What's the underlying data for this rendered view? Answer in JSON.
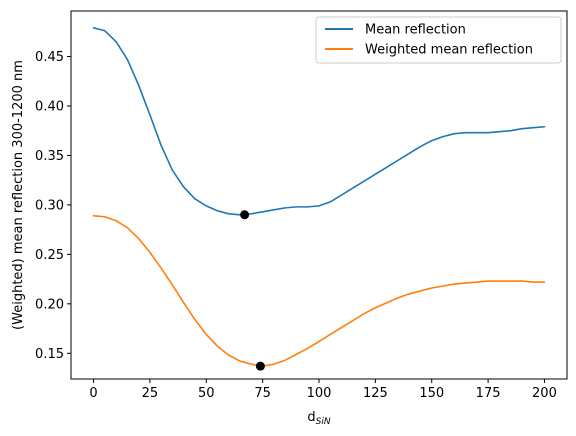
{
  "chart_data": {
    "type": "line",
    "title": "",
    "xlabel": "d",
    "xlabel_subscript": "SiN",
    "ylabel": "(Weighted) mean reflection 300-1200 nm",
    "xlim": [
      -10,
      210
    ],
    "ylim": [
      0.124,
      0.496
    ],
    "xticks": [
      0,
      25,
      50,
      75,
      100,
      125,
      150,
      175,
      200
    ],
    "yticks": [
      0.15,
      0.2,
      0.25,
      0.3,
      0.35,
      0.4,
      0.45
    ],
    "ytick_labels": [
      "0.15",
      "0.20",
      "0.25",
      "0.30",
      "0.35",
      "0.40",
      "0.45"
    ],
    "legend_position": "top-right",
    "series": [
      {
        "name": "Mean reflection",
        "color": "#1f77b4",
        "x": [
          0,
          5,
          10,
          15,
          20,
          25,
          30,
          35,
          40,
          45,
          50,
          55,
          60,
          65,
          67,
          70,
          75,
          80,
          85,
          90,
          95,
          100,
          105,
          110,
          115,
          120,
          125,
          130,
          135,
          140,
          145,
          150,
          155,
          160,
          165,
          170,
          175,
          180,
          185,
          190,
          195,
          200
        ],
        "y": [
          0.479,
          0.476,
          0.465,
          0.447,
          0.421,
          0.391,
          0.36,
          0.335,
          0.318,
          0.306,
          0.299,
          0.294,
          0.291,
          0.29,
          0.29,
          0.291,
          0.293,
          0.295,
          0.297,
          0.298,
          0.298,
          0.299,
          0.303,
          0.31,
          0.317,
          0.324,
          0.331,
          0.338,
          0.345,
          0.352,
          0.359,
          0.365,
          0.369,
          0.372,
          0.373,
          0.373,
          0.373,
          0.374,
          0.375,
          0.377,
          0.378,
          0.379
        ]
      },
      {
        "name": "Weighted mean reflection",
        "color": "#ff7f0e",
        "x": [
          0,
          5,
          10,
          15,
          20,
          25,
          30,
          35,
          40,
          45,
          50,
          55,
          60,
          65,
          70,
          74,
          75,
          80,
          85,
          90,
          95,
          100,
          105,
          110,
          115,
          120,
          125,
          130,
          135,
          140,
          145,
          150,
          155,
          160,
          165,
          170,
          175,
          180,
          185,
          190,
          195,
          200
        ],
        "y": [
          0.289,
          0.288,
          0.284,
          0.277,
          0.266,
          0.252,
          0.236,
          0.219,
          0.201,
          0.184,
          0.169,
          0.157,
          0.148,
          0.142,
          0.139,
          0.137,
          0.137,
          0.139,
          0.143,
          0.149,
          0.155,
          0.162,
          0.169,
          0.176,
          0.183,
          0.19,
          0.196,
          0.201,
          0.206,
          0.21,
          0.213,
          0.216,
          0.218,
          0.22,
          0.221,
          0.222,
          0.223,
          0.223,
          0.223,
          0.223,
          0.222,
          0.222
        ]
      }
    ],
    "markers": [
      {
        "x": 67,
        "y": 0.29,
        "color": "#000000"
      },
      {
        "x": 74,
        "y": 0.137,
        "color": "#000000"
      }
    ]
  }
}
